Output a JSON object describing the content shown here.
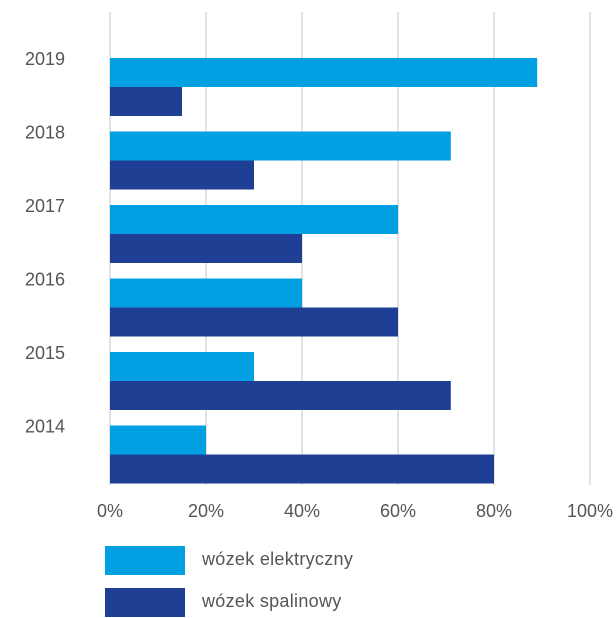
{
  "chart_data": {
    "type": "bar",
    "orientation": "horizontal",
    "categories": [
      "2019",
      "2018",
      "2017",
      "2016",
      "2015",
      "2014"
    ],
    "series": [
      {
        "name": "wózek elektryczny",
        "color": "#00a0e3",
        "values": [
          89,
          71,
          60,
          40,
          30,
          20
        ]
      },
      {
        "name": "wózek spalinowy",
        "color": "#1e3f94",
        "values": [
          15,
          30,
          40,
          60,
          71,
          80
        ]
      }
    ],
    "x_ticks": [
      "0%",
      "20%",
      "40%",
      "60%",
      "80%",
      "100%"
    ],
    "xlim": [
      0,
      100
    ],
    "grid": true,
    "legend_position": "bottom",
    "title": "",
    "xlabel": "",
    "ylabel": ""
  }
}
